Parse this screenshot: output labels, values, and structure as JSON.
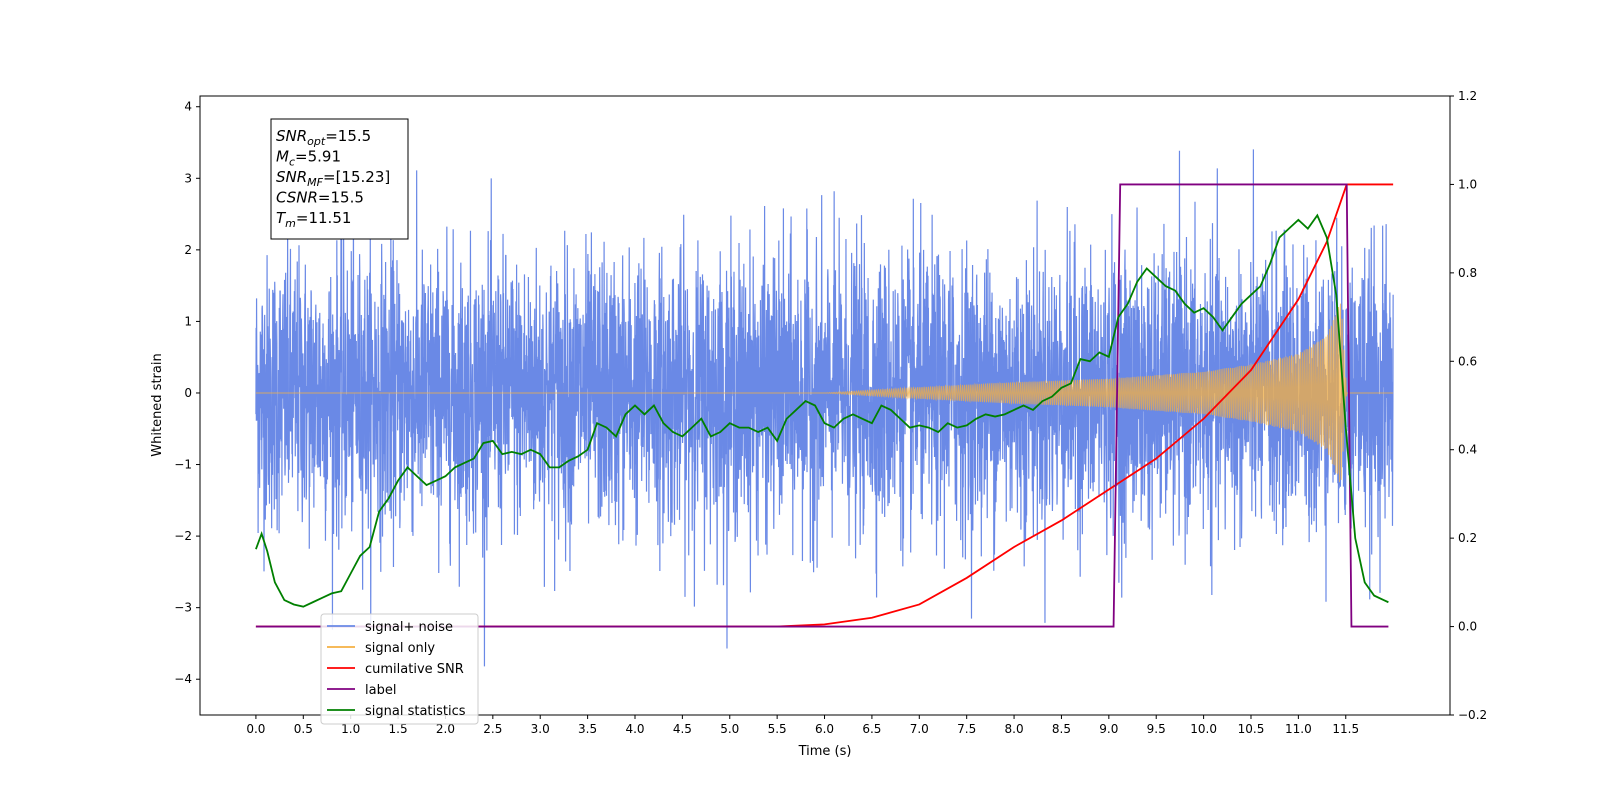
{
  "chart_data": {
    "type": "line",
    "xlabel": "Time (s)",
    "ylabel": "Whitened strain",
    "xlim": [
      -0.59,
      12.6
    ],
    "ylim": [
      -4.5,
      4.15
    ],
    "y2lim": [
      -0.2,
      1.2
    ],
    "grid": false,
    "legend_position": "lower-left",
    "x_ticks": [
      "0.0",
      "0.5",
      "1.0",
      "1.5",
      "2.0",
      "2.5",
      "3.0",
      "3.5",
      "4.0",
      "4.5",
      "5.0",
      "5.5",
      "6.0",
      "6.5",
      "7.0",
      "7.5",
      "8.0",
      "8.5",
      "9.0",
      "9.5",
      "10.0",
      "10.5",
      "11.0",
      "11.5"
    ],
    "y_ticks": [
      "4",
      "3",
      "2",
      "1",
      "0",
      "−1",
      "−2",
      "−3",
      "−4"
    ],
    "y2_ticks": [
      "1.2",
      "1.0",
      "0.8",
      "0.6",
      "0.4",
      "0.2",
      "0.0",
      "−0.2"
    ],
    "annotation": {
      "lines": [
        {
          "sym": "SNR",
          "sub": "opt",
          "rest": "=15.5"
        },
        {
          "sym": "M",
          "sub": "c",
          "rest": "=5.91"
        },
        {
          "sym": "SNR",
          "sub": "MF",
          "rest": "=[15.23]"
        },
        {
          "sym": "CSNR",
          "sub": "",
          "rest": "=15.5"
        },
        {
          "sym": "T",
          "sub": "m",
          "rest": "=11.51"
        }
      ]
    },
    "legend": [
      {
        "label": "signal+ noise",
        "color": "#6a89e6"
      },
      {
        "label": "signal only",
        "color": "#f5b042"
      },
      {
        "label": "cumilative SNR",
        "color": "#ff0000"
      },
      {
        "label": "label",
        "color": "#800080"
      },
      {
        "label": "signal statistics",
        "color": "#008000"
      }
    ],
    "series": [
      {
        "name": "signal+ noise",
        "axis": "left",
        "color": "#6a89e6",
        "t_range": [
          0.0,
          12.0
        ],
        "amplitude_typical": 2.3,
        "amplitude_peak_max": 3.67,
        "amplitude_trough_min": -4.12
      },
      {
        "name": "signal only",
        "axis": "left",
        "color": "#f5b042",
        "x": [
          0.0,
          6.0,
          7.0,
          8.0,
          9.0,
          10.0,
          10.5,
          11.0,
          11.3,
          11.45,
          11.51,
          11.6,
          12.0
        ],
        "envelope": [
          0.0,
          0.0,
          0.08,
          0.15,
          0.2,
          0.3,
          0.4,
          0.55,
          0.8,
          1.3,
          0.0,
          0.0,
          0.0
        ]
      },
      {
        "name": "cumilative SNR",
        "axis": "right",
        "color": "#ff0000",
        "x": [
          5.5,
          6.0,
          6.5,
          7.0,
          7.5,
          8.0,
          8.5,
          9.0,
          9.5,
          10.0,
          10.5,
          11.0,
          11.3,
          11.51,
          12.0
        ],
        "y": [
          0.0,
          0.005,
          0.02,
          0.05,
          0.11,
          0.18,
          0.24,
          0.31,
          0.38,
          0.47,
          0.58,
          0.74,
          0.87,
          1.0,
          1.0
        ]
      },
      {
        "name": "label",
        "axis": "right",
        "color": "#800080",
        "x": [
          0.0,
          9.05,
          9.12,
          11.51,
          11.56,
          11.95
        ],
        "y": [
          0.0,
          0.0,
          1.0,
          1.0,
          0.0,
          0.0
        ]
      },
      {
        "name": "signal statistics",
        "axis": "right",
        "color": "#008000",
        "x": [
          0.0,
          0.06,
          0.12,
          0.2,
          0.3,
          0.4,
          0.5,
          0.6,
          0.7,
          0.8,
          0.9,
          1.0,
          1.1,
          1.2,
          1.3,
          1.4,
          1.5,
          1.6,
          1.7,
          1.8,
          1.9,
          2.0,
          2.1,
          2.2,
          2.3,
          2.4,
          2.5,
          2.6,
          2.7,
          2.8,
          2.9,
          3.0,
          3.1,
          3.2,
          3.3,
          3.4,
          3.5,
          3.6,
          3.7,
          3.8,
          3.9,
          4.0,
          4.1,
          4.2,
          4.3,
          4.4,
          4.5,
          4.6,
          4.7,
          4.8,
          4.9,
          5.0,
          5.1,
          5.2,
          5.3,
          5.4,
          5.5,
          5.6,
          5.7,
          5.8,
          5.9,
          6.0,
          6.1,
          6.2,
          6.3,
          6.4,
          6.5,
          6.6,
          6.7,
          6.8,
          6.9,
          7.0,
          7.1,
          7.2,
          7.3,
          7.4,
          7.5,
          7.6,
          7.7,
          7.8,
          7.9,
          8.0,
          8.1,
          8.2,
          8.3,
          8.4,
          8.5,
          8.6,
          8.7,
          8.8,
          8.9,
          9.0,
          9.1,
          9.2,
          9.3,
          9.4,
          9.5,
          9.6,
          9.7,
          9.8,
          9.9,
          10.0,
          10.1,
          10.2,
          10.3,
          10.4,
          10.5,
          10.6,
          10.7,
          10.8,
          10.9,
          11.0,
          11.1,
          11.2,
          11.3,
          11.4,
          11.5,
          11.6,
          11.7,
          11.8,
          11.9,
          11.95
        ],
        "y": [
          0.175,
          0.21,
          0.17,
          0.1,
          0.06,
          0.05,
          0.045,
          0.055,
          0.065,
          0.075,
          0.08,
          0.12,
          0.16,
          0.18,
          0.26,
          0.29,
          0.33,
          0.36,
          0.34,
          0.32,
          0.33,
          0.34,
          0.36,
          0.37,
          0.38,
          0.415,
          0.42,
          0.39,
          0.395,
          0.39,
          0.4,
          0.39,
          0.36,
          0.36,
          0.375,
          0.385,
          0.4,
          0.46,
          0.45,
          0.43,
          0.48,
          0.5,
          0.48,
          0.5,
          0.46,
          0.44,
          0.43,
          0.45,
          0.47,
          0.43,
          0.44,
          0.46,
          0.45,
          0.45,
          0.44,
          0.45,
          0.42,
          0.47,
          0.49,
          0.51,
          0.5,
          0.46,
          0.45,
          0.47,
          0.48,
          0.47,
          0.46,
          0.5,
          0.49,
          0.47,
          0.45,
          0.455,
          0.45,
          0.44,
          0.46,
          0.45,
          0.455,
          0.47,
          0.48,
          0.475,
          0.48,
          0.49,
          0.5,
          0.49,
          0.51,
          0.52,
          0.54,
          0.55,
          0.605,
          0.6,
          0.62,
          0.61,
          0.7,
          0.73,
          0.78,
          0.81,
          0.79,
          0.77,
          0.76,
          0.73,
          0.71,
          0.72,
          0.7,
          0.67,
          0.7,
          0.73,
          0.75,
          0.77,
          0.82,
          0.88,
          0.9,
          0.92,
          0.9,
          0.93,
          0.88,
          0.75,
          0.45,
          0.2,
          0.1,
          0.07,
          0.06,
          0.055
        ]
      }
    ]
  }
}
